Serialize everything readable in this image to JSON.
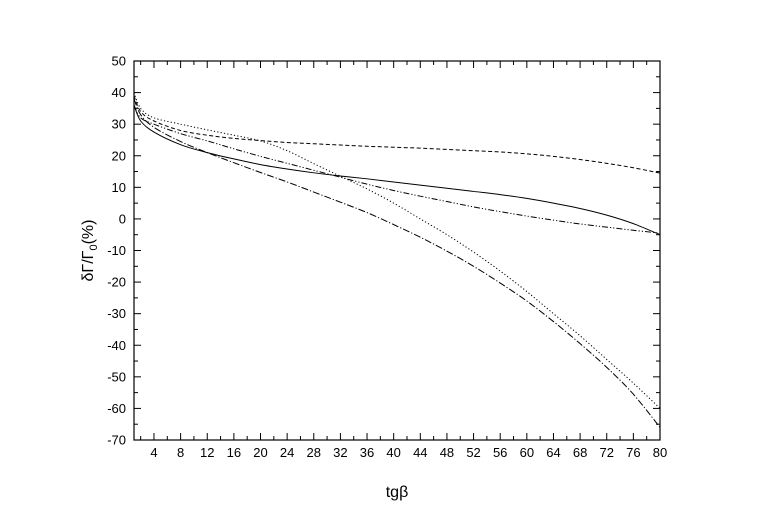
{
  "chart_data": {
    "type": "line",
    "xlabel": "tgβ",
    "ylabel": "δΓ/Γ",
    "ylabel_sub": "0",
    "ylabel_unit": "(%)",
    "xlim": [
      1,
      80
    ],
    "ylim": [
      -70,
      50
    ],
    "xticks": [
      4,
      8,
      12,
      16,
      20,
      24,
      28,
      32,
      36,
      40,
      44,
      48,
      52,
      56,
      60,
      64,
      68,
      72,
      76,
      80
    ],
    "yticks": [
      50,
      40,
      30,
      20,
      10,
      0,
      -10,
      -20,
      -30,
      -40,
      -50,
      -60,
      -70
    ],
    "grid": false,
    "legend": "none",
    "series": [
      {
        "style": "solid",
        "x": [
          1,
          2,
          4,
          8,
          12,
          16,
          20,
          24,
          28,
          32,
          36,
          40,
          44,
          48,
          52,
          56,
          60,
          64,
          68,
          72,
          76,
          80
        ],
        "y": [
          36,
          31,
          27.5,
          23.5,
          21,
          19,
          17.2,
          15.8,
          14.6,
          13.6,
          12.7,
          11.7,
          10.7,
          9.7,
          8.7,
          7.7,
          6.5,
          5,
          3.3,
          1.2,
          -1.5,
          -5
        ]
      },
      {
        "style": "dashed",
        "x": [
          1,
          2,
          4,
          8,
          12,
          16,
          20,
          24,
          28,
          32,
          36,
          40,
          44,
          48,
          52,
          56,
          60,
          64,
          68,
          72,
          76,
          80
        ],
        "y": [
          39,
          34,
          31,
          28,
          26.5,
          25.5,
          24.8,
          24.2,
          23.8,
          23.4,
          23,
          22.7,
          22.4,
          22,
          21.6,
          21.2,
          20.6,
          19.8,
          18.8,
          17.6,
          16.2,
          14.5
        ]
      },
      {
        "style": "dotted",
        "x": [
          1,
          2,
          4,
          8,
          12,
          16,
          20,
          24,
          28,
          32,
          36,
          40,
          44,
          48,
          52,
          56,
          60,
          64,
          68,
          72,
          76,
          80
        ],
        "y": [
          40,
          35,
          32,
          30,
          28.2,
          26.5,
          24.7,
          21.6,
          17.5,
          13.5,
          9.5,
          5,
          0,
          -5,
          -10.5,
          -16.5,
          -23,
          -30,
          -37,
          -44.5,
          -52,
          -60
        ]
      },
      {
        "style": "dash-dot-dot",
        "x": [
          1,
          2,
          4,
          8,
          12,
          16,
          20,
          24,
          28,
          32,
          36,
          40,
          44,
          48,
          52,
          56,
          60,
          64,
          68,
          72,
          76,
          80
        ],
        "y": [
          36,
          32,
          30,
          27,
          24.7,
          22.2,
          19.8,
          17.6,
          15.4,
          13.2,
          11,
          9,
          7.2,
          5.5,
          3.8,
          2.3,
          0.9,
          -0.4,
          -1.6,
          -2.6,
          -3.6,
          -4.5
        ]
      },
      {
        "style": "dash-dot",
        "x": [
          1,
          2,
          4,
          8,
          12,
          16,
          20,
          24,
          28,
          32,
          36,
          40,
          44,
          48,
          52,
          56,
          60,
          64,
          68,
          72,
          76,
          80
        ],
        "y": [
          38,
          33,
          29,
          24.5,
          21,
          17.8,
          14.7,
          11.7,
          8.5,
          5.3,
          2,
          -1.8,
          -5.8,
          -10.2,
          -15,
          -20.3,
          -26,
          -32.5,
          -39.5,
          -47,
          -55.5,
          -66
        ]
      }
    ]
  }
}
